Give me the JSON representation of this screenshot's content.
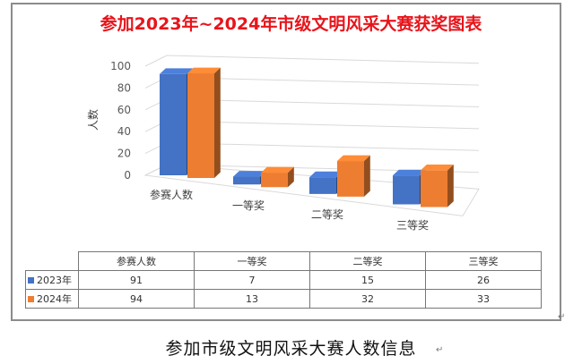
{
  "colors": {
    "series_2023": "#4472c4",
    "series_2024": "#ed7d31",
    "title": "#e8141b"
  },
  "caption": "参加市级文明风采大赛人数信息",
  "paragraph_mark": "↵",
  "chart_data": {
    "type": "bar",
    "style": "3d-clustered-column",
    "title": "参加2023年~2024年市级文明风采大赛获奖图表",
    "ylabel": "人数",
    "xlabel": "",
    "ylim": [
      0,
      100
    ],
    "yticks": [
      0,
      20,
      40,
      60,
      80,
      100
    ],
    "grid": true,
    "legend": "data-table",
    "categories": [
      "参赛人数",
      "一等奖",
      "二等奖",
      "三等奖"
    ],
    "series": [
      {
        "name": "2023年",
        "values": [
          91,
          7,
          15,
          26
        ]
      },
      {
        "name": "2024年",
        "values": [
          94,
          13,
          32,
          33
        ]
      }
    ]
  }
}
